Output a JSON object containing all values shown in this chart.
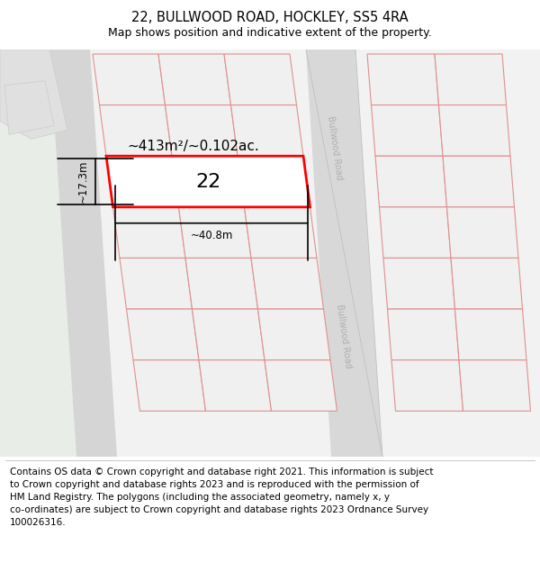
{
  "title": "22, BULLWOOD ROAD, HOCKLEY, SS5 4RA",
  "subtitle": "Map shows position and indicative extent of the property.",
  "footer": "Contains OS data © Crown copyright and database right 2021. This information is subject\nto Crown copyright and database rights 2023 and is reproduced with the permission of\nHM Land Registry. The polygons (including the associated geometry, namely x, y\nco-ordinates) are subject to Crown copyright and database rights 2023 Ordnance Survey\n100026316.",
  "bg_color": "#f5f5f5",
  "road_fill": "#d8d8d8",
  "block_fill": "#f0f0f0",
  "block_edge": "#e09090",
  "green_fill": "#e8ede8",
  "highlight_edge": "#ff0000",
  "highlight_fill": "#ffffff",
  "road_label": "Bullwood Road",
  "area_label": "~413m²/~0.102ac.",
  "width_label": "~40.8m",
  "height_label": "~17.3m",
  "number_label": "22",
  "title_fontsize": 10.5,
  "subtitle_fontsize": 9,
  "footer_fontsize": 7.5
}
